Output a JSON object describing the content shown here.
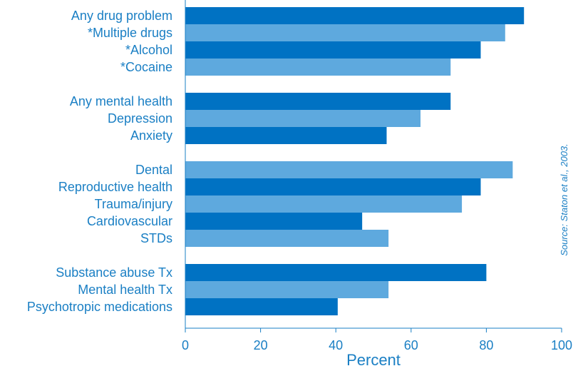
{
  "chart_data": {
    "type": "bar",
    "orientation": "horizontal",
    "title": "",
    "xlabel": "Percent",
    "ylabel": "",
    "xlim": [
      0,
      100
    ],
    "xticks": [
      0,
      20,
      40,
      60,
      80,
      100
    ],
    "grid": false,
    "source_note": "Source: Staton et al., 2003.",
    "colors": {
      "dark": "#0072c3",
      "light": "#5ea9de",
      "text": "#1a7fc4"
    },
    "groups": [
      {
        "bars": [
          {
            "label": "Any drug problem",
            "value": 90,
            "shade": "dark"
          },
          {
            "label": "*Multiple drugs",
            "value": 85,
            "shade": "light"
          },
          {
            "label": "*Alcohol",
            "value": 78.5,
            "shade": "dark"
          },
          {
            "label": "*Cocaine",
            "value": 70.5,
            "shade": "light"
          }
        ]
      },
      {
        "bars": [
          {
            "label": "Any mental health",
            "value": 70.5,
            "shade": "dark"
          },
          {
            "label": "Depression",
            "value": 62.5,
            "shade": "light"
          },
          {
            "label": "Anxiety",
            "value": 53.5,
            "shade": "dark"
          }
        ]
      },
      {
        "bars": [
          {
            "label": "Dental",
            "value": 87,
            "shade": "light"
          },
          {
            "label": "Reproductive health",
            "value": 78.5,
            "shade": "dark"
          },
          {
            "label": "Trauma/injury",
            "value": 73.5,
            "shade": "light"
          },
          {
            "label": "Cardiovascular",
            "value": 47,
            "shade": "dark"
          },
          {
            "label": "STDs",
            "value": 54,
            "shade": "light"
          }
        ]
      },
      {
        "bars": [
          {
            "label": "Substance abuse Tx",
            "value": 80,
            "shade": "dark"
          },
          {
            "label": "Mental health Tx",
            "value": 54,
            "shade": "light"
          },
          {
            "label": "Psychotropic medications",
            "value": 40.5,
            "shade": "dark"
          }
        ]
      }
    ]
  }
}
